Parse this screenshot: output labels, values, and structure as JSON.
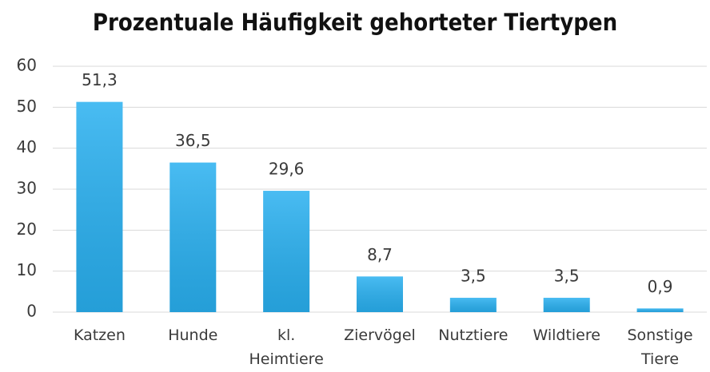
{
  "chart_data": {
    "type": "bar",
    "title": "Prozentuale Häufigkeit gehorteter Tiertypen",
    "categories": [
      "Katzen",
      "Hunde",
      "kl. Heimtiere",
      "Ziervögel",
      "Nutztiere",
      "Wildtiere",
      "Sonstige Tiere"
    ],
    "values": [
      51.3,
      36.5,
      29.6,
      8.7,
      3.5,
      3.5,
      0.9
    ],
    "value_labels": [
      "51,3",
      "36,5",
      "29,6",
      "8,7",
      "3,5",
      "3,5",
      "0,9"
    ],
    "color": "#29b0f0",
    "ylim": [
      0,
      60
    ],
    "yticks": [
      0,
      10,
      20,
      30,
      40,
      50,
      60
    ],
    "grid": true
  }
}
